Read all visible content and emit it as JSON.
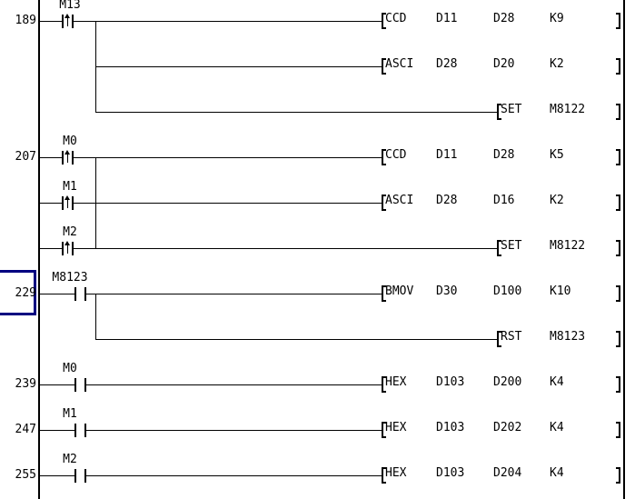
{
  "colors": {
    "background": "#ffffff",
    "lines": "#000000",
    "text": "#000000",
    "selection": "#000080"
  },
  "rungs": [
    {
      "step": "189",
      "selected": false,
      "rows": [
        {
          "contact": {
            "device": "M13",
            "type": "pulse"
          },
          "instruction": {
            "name": "CCD",
            "operands": [
              "D11",
              "D28",
              "K9"
            ]
          }
        },
        {
          "instruction": {
            "name": "ASCI",
            "operands": [
              "D28",
              "D20",
              "K2"
            ]
          }
        },
        {
          "instruction": {
            "name": "SET",
            "operands": [
              "M8122"
            ]
          }
        }
      ]
    },
    {
      "step": "207",
      "selected": false,
      "rows": [
        {
          "contact": {
            "device": "M0",
            "type": "pulse"
          },
          "instruction": {
            "name": "CCD",
            "operands": [
              "D11",
              "D28",
              "K5"
            ]
          }
        },
        {
          "contact": {
            "device": "M1",
            "type": "pulse"
          },
          "instruction": {
            "name": "ASCI",
            "operands": [
              "D28",
              "D16",
              "K2"
            ]
          }
        },
        {
          "contact": {
            "device": "M2",
            "type": "pulse"
          },
          "instruction": {
            "name": "SET",
            "operands": [
              "M8122"
            ]
          }
        }
      ]
    },
    {
      "step": "229",
      "selected": true,
      "rows": [
        {
          "contact": {
            "device": "M8123",
            "type": "normal"
          },
          "instruction": {
            "name": "BMOV",
            "operands": [
              "D30",
              "D100",
              "K10"
            ]
          }
        },
        {
          "instruction": {
            "name": "RST",
            "operands": [
              "M8123"
            ]
          }
        }
      ]
    },
    {
      "step": "239",
      "selected": false,
      "rows": [
        {
          "contact": {
            "device": "M0",
            "type": "normal"
          },
          "instruction": {
            "name": "HEX",
            "operands": [
              "D103",
              "D200",
              "K4"
            ]
          }
        }
      ]
    },
    {
      "step": "247",
      "selected": false,
      "rows": [
        {
          "contact": {
            "device": "M1",
            "type": "normal"
          },
          "instruction": {
            "name": "HEX",
            "operands": [
              "D103",
              "D202",
              "K4"
            ]
          }
        }
      ]
    },
    {
      "step": "255",
      "selected": false,
      "rows": [
        {
          "contact": {
            "device": "M2",
            "type": "normal"
          },
          "instruction": {
            "name": "HEX",
            "operands": [
              "D103",
              "D204",
              "K4"
            ]
          }
        }
      ]
    }
  ]
}
